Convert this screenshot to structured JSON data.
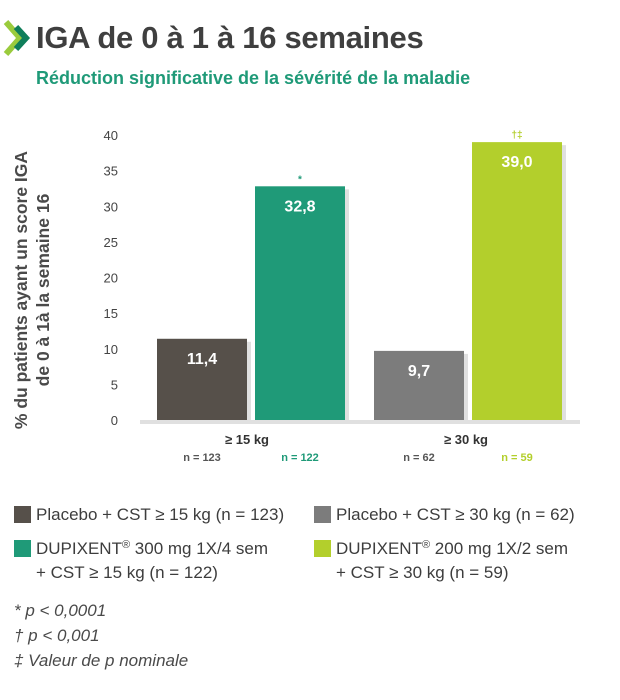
{
  "header": {
    "title": "IGA de 0 à 1 à 16 semaines",
    "subtitle": "Réduction significative de la sévérité de la maladie"
  },
  "colors": {
    "placebo_15": "#56504a",
    "dupixent_15": "#1f9a78",
    "placebo_30": "#7c7c7c",
    "dupixent_30": "#b3cf2c",
    "chevron_green": "#9acb3c",
    "chevron_dark": "#0f7e5a"
  },
  "chart_data": {
    "type": "bar",
    "ylabel_line1": "% du patients ayant un score IGA",
    "ylabel_line2": "de 0 à 1à la semaine 16",
    "ylim": [
      0,
      40
    ],
    "yticks": [
      "0",
      "5",
      "10",
      "15",
      "20",
      "25",
      "30",
      "35",
      "40"
    ],
    "groups": [
      {
        "label": "≥ 15 kg",
        "bars": [
          {
            "series": "Placebo + CST ≥ 15 kg",
            "value": 11.4,
            "value_label": "11,4",
            "n_label": "n = 123",
            "marker": "",
            "color_key": "placebo_15"
          },
          {
            "series": "DUPIXENT 300 mg 1X/4 sem + CST ≥ 15 kg",
            "value": 32.8,
            "value_label": "32,8",
            "n_label": "n = 122",
            "marker": "*",
            "color_key": "dupixent_15"
          }
        ]
      },
      {
        "label": "≥ 30 kg",
        "bars": [
          {
            "series": "Placebo + CST ≥ 30 kg",
            "value": 9.7,
            "value_label": "9,7",
            "n_label": "n = 62",
            "marker": "",
            "color_key": "placebo_30"
          },
          {
            "series": "DUPIXENT 200 mg 1X/2 sem + CST ≥ 30 kg",
            "value": 39.0,
            "value_label": "39,0",
            "n_label": "n = 59",
            "marker": "†‡",
            "color_key": "dupixent_30"
          }
        ]
      }
    ]
  },
  "legend": {
    "placebo_15": "Placebo + CST ≥ 15 kg (n = 123)",
    "placebo_30": "Placebo + CST ≥ 30 kg (n = 62)",
    "dupixent_15_brand": "DUPIXENT",
    "dupixent_15_reg": "®",
    "dupixent_15_line1": " 300 mg 1X/4 sem",
    "dupixent_15_line2": "+ CST ≥ 15 kg (n = 122)",
    "dupixent_30_brand": "DUPIXENT",
    "dupixent_30_reg": "®",
    "dupixent_30_line1": " 200 mg 1X/2 sem",
    "dupixent_30_line2": "+ CST ≥ 30 kg (n = 59)"
  },
  "footnotes": [
    "* p < 0,0001",
    "† p < 0,001",
    "‡ Valeur de p nominale"
  ]
}
